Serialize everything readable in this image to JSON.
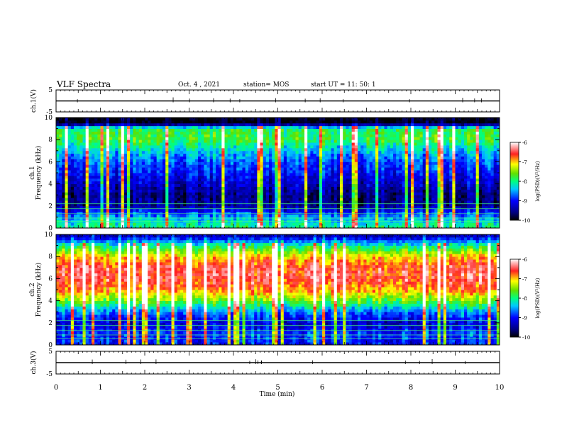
{
  "header": {
    "title": "VLF Spectra",
    "date": "Oct. 4  , 2021",
    "station": "station= MOS",
    "start_ut": "start  UT =   11: 50: 1"
  },
  "chart_data": [
    {
      "type": "line",
      "panel": "ch1-waveform",
      "ylabel": "ch.1(V)",
      "ylim": [
        -5,
        5
      ],
      "y_ticks": [
        "5",
        "-5"
      ],
      "x": [
        0,
        10
      ],
      "values": [
        0,
        0
      ]
    },
    {
      "type": "heatmap",
      "panel": "ch1-spectrogram",
      "ylabel": "ch.1\nFrequency (kHz)",
      "ylim": [
        0,
        10
      ],
      "y_ticks": [
        "0",
        "2",
        "4",
        "6",
        "8",
        "10"
      ],
      "xlim": [
        0,
        10
      ],
      "colorbar": {
        "label": "log(PSD)(V²/Hz)",
        "ticks": [
          "-6",
          "-7",
          "-8",
          "-9",
          "-10"
        ],
        "range": [
          -10,
          -6
        ]
      },
      "band_profile_khz": [
        0,
        1,
        2,
        3,
        4,
        5,
        6,
        7,
        8,
        9,
        9.5,
        10
      ],
      "band_profile_log_psd": [
        -8.0,
        -8.5,
        -9.5,
        -9.6,
        -9.3,
        -9.0,
        -8.8,
        -8.4,
        -7.8,
        -7.9,
        -10,
        -10
      ]
    },
    {
      "type": "heatmap",
      "panel": "ch2-spectrogram",
      "ylabel": "ch.2\nFrequency (kHz)",
      "ylim": [
        0,
        10
      ],
      "y_ticks": [
        "0",
        "2",
        "4",
        "6",
        "8",
        "10"
      ],
      "xlim": [
        0,
        10
      ],
      "colorbar": {
        "label": "log(PSD)(V²/Hz)",
        "ticks": [
          "-6",
          "-7",
          "-8",
          "-9",
          "-10"
        ],
        "range": [
          -10,
          -6
        ]
      },
      "band_profile_khz": [
        0,
        1,
        2,
        3,
        4,
        5,
        6,
        7,
        8,
        9,
        9.5,
        10
      ],
      "band_profile_log_psd": [
        -9.0,
        -8.8,
        -9.2,
        -8.6,
        -7.6,
        -6.8,
        -6.5,
        -6.5,
        -7.0,
        -8.0,
        -8.8,
        -9.5
      ]
    },
    {
      "type": "line",
      "panel": "ch3-waveform",
      "ylabel": "ch.3(V)",
      "ylim": [
        -5,
        5
      ],
      "y_ticks": [
        "5",
        "-5"
      ],
      "x": [
        0,
        10
      ],
      "values": [
        0,
        0
      ]
    }
  ],
  "x_axis": {
    "label": "Time (min)",
    "ticks": [
      "0",
      "1",
      "2",
      "3",
      "4",
      "5",
      "6",
      "7",
      "8",
      "9",
      "10"
    ],
    "range": [
      0,
      10
    ]
  }
}
